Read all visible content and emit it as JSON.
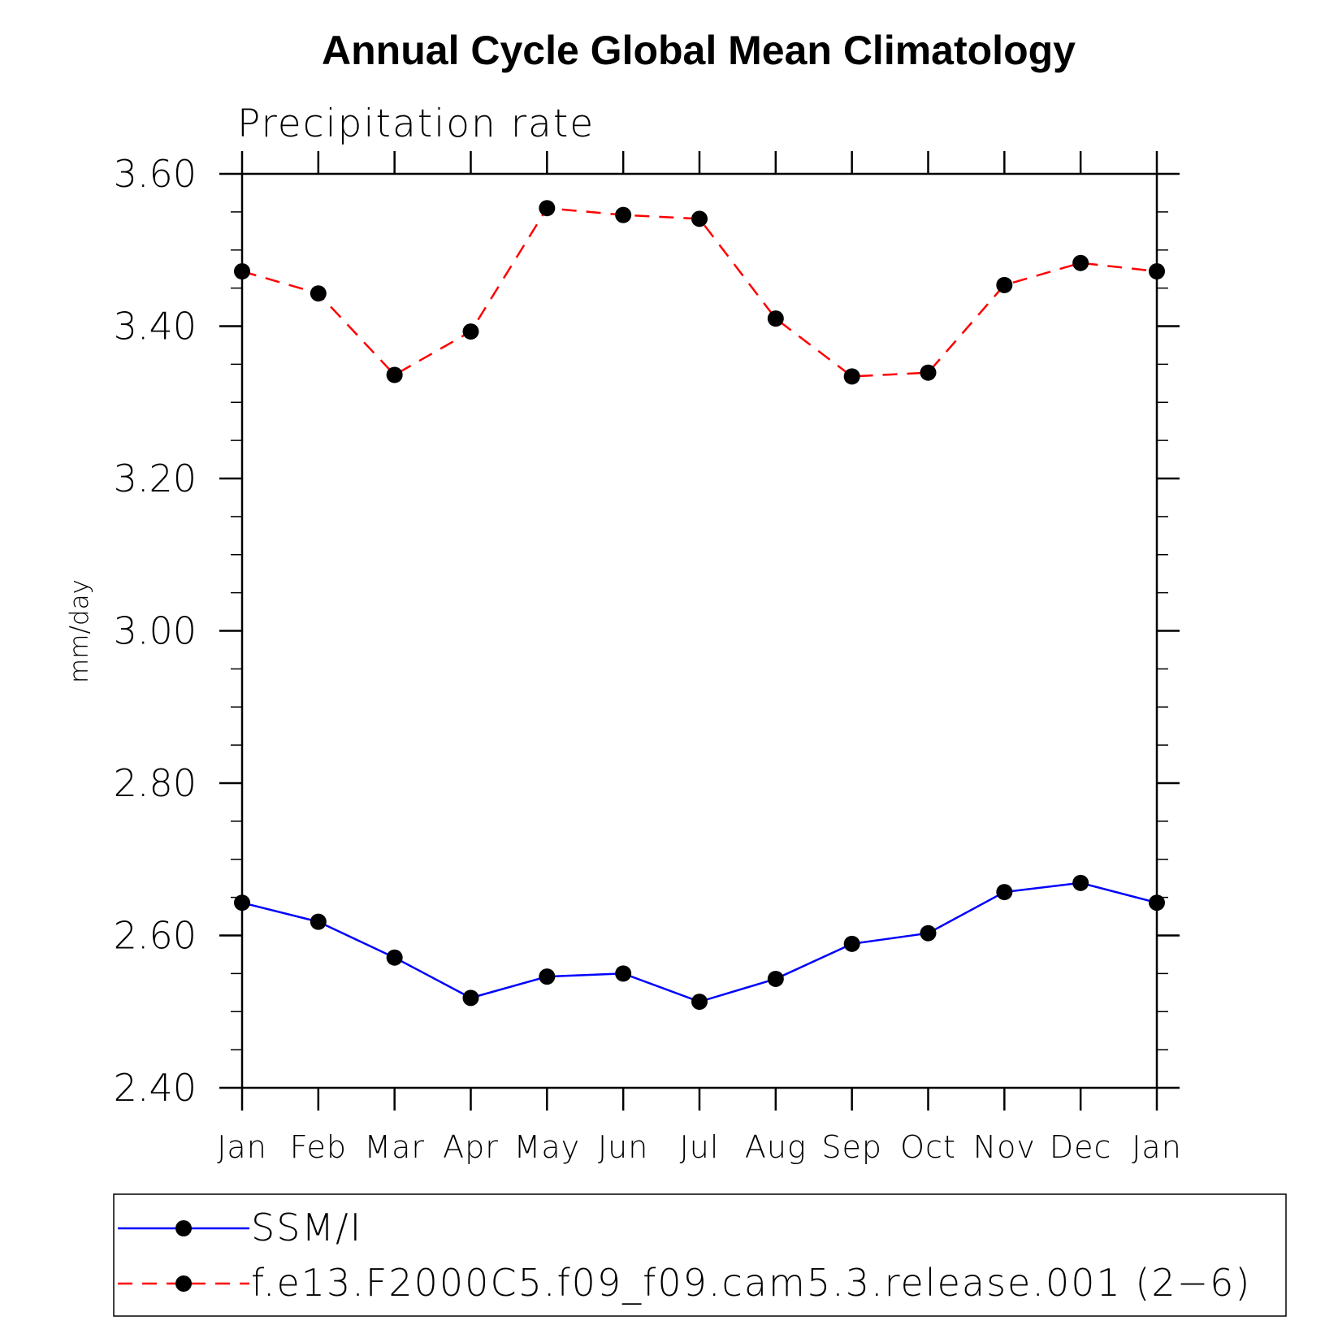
{
  "chart_data": {
    "type": "line",
    "title": "Annual Cycle Global Mean Climatology",
    "subtitle": "Precipitation rate",
    "ylabel": "mm/day",
    "xlabel": "",
    "categories": [
      "Jan",
      "Feb",
      "Mar",
      "Apr",
      "May",
      "Jun",
      "Jul",
      "Aug",
      "Sep",
      "Oct",
      "Nov",
      "Dec",
      "Jan"
    ],
    "ylim": [
      2.4,
      3.6
    ],
    "yticks": [
      2.4,
      2.6,
      2.8,
      3.0,
      3.2,
      3.4,
      3.6
    ],
    "ytick_labels": [
      "2.40",
      "2.60",
      "2.80",
      "3.00",
      "3.20",
      "3.40",
      "3.60"
    ],
    "y_minor_step": 0.05,
    "grid": false,
    "legend_position": "bottom",
    "series": [
      {
        "name": "SSM/I",
        "color": "#0000ff",
        "dash": "solid",
        "marker_color": "#000000",
        "values": [
          2.643,
          2.618,
          2.571,
          2.518,
          2.546,
          2.55,
          2.513,
          2.543,
          2.589,
          2.603,
          2.657,
          2.669,
          2.643
        ]
      },
      {
        "name": "f.e13.F2000C5.f09_f09.cam5.3.release.001 (2−6)",
        "color": "#ff0000",
        "dash": "dashed",
        "marker_color": "#000000",
        "values": [
          3.472,
          3.443,
          3.336,
          3.393,
          3.555,
          3.546,
          3.541,
          3.41,
          3.334,
          3.339,
          3.454,
          3.483,
          3.472
        ]
      }
    ]
  }
}
